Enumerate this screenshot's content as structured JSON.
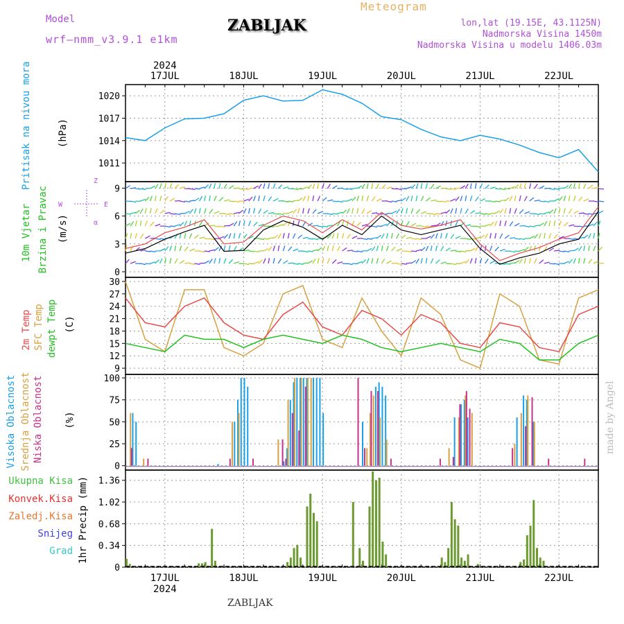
{
  "header": {
    "model_label": "Model",
    "model_name": "wrf—nmm_v3.9.1 e1km",
    "station": "ZABLJAK",
    "title": "Meteogram",
    "info_lines": [
      "lon,lat (19.15E, 43.1125N)",
      "Nadmorska Visina 1450m",
      "Nadmorska Visina u modelu 1406.03m"
    ],
    "credit": "made by Angel",
    "bottom_station": "ZABLJAK"
  },
  "colors": {
    "purple": "#b04fd8",
    "orange": "#e8b060",
    "pressure": "#1aa0e8",
    "temp2m": "#e84a4a",
    "sfc": "#d8a040",
    "dew": "#20c020",
    "high": "#1aa0e8",
    "mid": "#d8a040",
    "low": "#c8308a",
    "total_precip": "#40c040",
    "convective": "#e83030",
    "frozen": "#e87830",
    "snow": "#4040e0",
    "graupel": "#30c8c8",
    "precip_bar": "#6a9a30"
  },
  "axis": {
    "year_label": "2024",
    "days": [
      "17JUL",
      "18JUL",
      "19JUL",
      "20JUL",
      "21JUL",
      "22JUL"
    ]
  },
  "compass": {
    "n": "Z",
    "w": "W",
    "e": "E",
    "s": "α"
  },
  "chart_data": [
    {
      "type": "line",
      "title": "",
      "ylabel_lines": [
        "Pritisak na nivou mora",
        "(hPa)"
      ],
      "yticks": [
        1011,
        1014,
        1017,
        1020
      ],
      "ylim": [
        1008.5,
        1021.5
      ],
      "x_hours": [
        0,
        6,
        12,
        18,
        24,
        30,
        36,
        42,
        48,
        54,
        60,
        66,
        72,
        78,
        84,
        90,
        96,
        102,
        108,
        114,
        120,
        126,
        132,
        138,
        144
      ],
      "series": [
        {
          "values": [
            1014.4,
            1014.0,
            1015.7,
            1016.9,
            1017.0,
            1017.6,
            1019.4,
            1020.0,
            1019.3,
            1019.4,
            1020.8,
            1020.2,
            1019.0,
            1017.2,
            1016.8,
            1015.5,
            1014.5,
            1014.0,
            1014.7,
            1014.2,
            1013.4,
            1012.4,
            1011.7,
            1012.8,
            1009.8
          ]
        }
      ]
    },
    {
      "type": "line",
      "title": "",
      "ylabel_lines": [
        "10m Vjetar",
        "Brzina i Pravac",
        "(m/s)"
      ],
      "yticks": [
        0,
        3,
        6,
        9
      ],
      "ylim": [
        -0.6,
        9.7
      ],
      "x_hours": [
        0,
        6,
        12,
        18,
        24,
        30,
        36,
        42,
        48,
        54,
        60,
        66,
        72,
        78,
        84,
        90,
        96,
        102,
        108,
        114,
        120,
        126,
        132,
        138,
        144
      ],
      "series": [
        {
          "name": "speed",
          "values": [
            2.0,
            2.5,
            3.5,
            4.3,
            5.0,
            2.2,
            2.3,
            4.5,
            5.5,
            4.8,
            3.5,
            5.0,
            4.0,
            6.0,
            4.5,
            4.0,
            4.5,
            5.0,
            2.5,
            0.8,
            1.5,
            2.0,
            3.0,
            3.5,
            6.5
          ]
        },
        {
          "name": "gust",
          "values": [
            2.5,
            3.0,
            4.2,
            4.8,
            5.6,
            3.0,
            3.2,
            5.0,
            6.0,
            5.5,
            4.2,
            5.6,
            4.5,
            6.4,
            5.0,
            4.6,
            5.0,
            5.6,
            3.0,
            1.2,
            2.0,
            2.6,
            3.5,
            4.2,
            7.0
          ]
        }
      ]
    },
    {
      "type": "line",
      "title": "",
      "ylabel_lines": [
        "2m Temp",
        "SFC Temp",
        "dewpt Temp",
        "(C)"
      ],
      "yticks": [
        9,
        12,
        15,
        18,
        21,
        24,
        27,
        30
      ],
      "ylim": [
        7.5,
        31
      ],
      "x_hours": [
        0,
        6,
        12,
        18,
        24,
        30,
        36,
        42,
        48,
        54,
        60,
        66,
        72,
        78,
        84,
        90,
        96,
        102,
        108,
        114,
        120,
        126,
        132,
        138,
        144
      ],
      "series": [
        {
          "name": "2m Temp",
          "values": [
            26,
            20,
            19,
            24,
            26,
            20,
            17,
            16,
            22,
            25,
            19,
            17,
            23,
            21,
            17,
            22,
            20,
            15,
            14,
            20,
            19,
            14,
            13,
            22,
            24
          ]
        },
        {
          "name": "SFC Temp",
          "values": [
            30,
            16,
            13,
            28,
            28,
            14,
            12,
            15,
            27,
            29,
            16,
            14,
            26,
            18,
            12,
            26,
            22,
            11,
            9,
            27,
            24,
            11,
            10,
            26,
            28
          ]
        },
        {
          "name": "dewpt Temp",
          "values": [
            15,
            14,
            13,
            17,
            16,
            16,
            14,
            16,
            17,
            16,
            15,
            17,
            16,
            14,
            13,
            14,
            15,
            14,
            13,
            16,
            15,
            11,
            11,
            15,
            17
          ]
        }
      ]
    },
    {
      "type": "bar",
      "title": "",
      "ylabel_lines": [
        "Visoka Oblacnost",
        "Srednja Oblacnost",
        "Niska Oblacnost",
        "(%)"
      ],
      "yticks": [
        0,
        25,
        50,
        75,
        100
      ],
      "ylim": [
        -5,
        104
      ],
      "series": [
        {
          "name": "Visoka Oblacnost",
          "bars": [
            [
              2,
              60
            ],
            [
              3,
              50
            ],
            [
              28,
              2
            ],
            [
              33,
              50
            ],
            [
              34,
              75
            ],
            [
              35,
              100
            ],
            [
              36,
              100
            ],
            [
              37,
              90
            ],
            [
              48,
              5
            ],
            [
              49,
              20
            ],
            [
              50,
              75
            ],
            [
              51,
              95
            ],
            [
              52,
              100
            ],
            [
              53,
              100
            ],
            [
              54,
              100
            ],
            [
              55,
              100
            ],
            [
              57,
              100
            ],
            [
              58,
              100
            ],
            [
              59,
              100
            ],
            [
              60,
              60
            ],
            [
              72,
              50
            ],
            [
              76,
              90
            ],
            [
              77,
              95
            ],
            [
              78,
              90
            ],
            [
              79,
              80
            ],
            [
              100,
              55
            ],
            [
              102,
              70
            ],
            [
              103,
              75
            ],
            [
              104,
              55
            ],
            [
              119,
              55
            ],
            [
              121,
              80
            ],
            [
              122,
              75
            ],
            [
              124,
              50
            ]
          ]
        },
        {
          "name": "Srednja Oblacnost",
          "bars": [
            [
              1,
              60
            ],
            [
              5,
              8
            ],
            [
              32,
              50
            ],
            [
              34,
              60
            ],
            [
              46,
              30
            ],
            [
              49,
              75
            ],
            [
              51,
              100
            ],
            [
              53,
              100
            ],
            [
              55,
              100
            ],
            [
              56,
              100
            ],
            [
              73,
              20
            ],
            [
              74,
              60
            ],
            [
              75,
              80
            ],
            [
              77,
              55
            ],
            [
              79,
              30
            ],
            [
              98,
              20
            ],
            [
              101,
              55
            ],
            [
              103,
              80
            ],
            [
              105,
              60
            ],
            [
              118,
              25
            ],
            [
              120,
              60
            ],
            [
              122,
              80
            ],
            [
              124,
              50
            ]
          ]
        },
        {
          "name": "Niska Oblacnost",
          "bars": [
            [
              1,
              20
            ],
            [
              6,
              8
            ],
            [
              31,
              8
            ],
            [
              38,
              8
            ],
            [
              47,
              30
            ],
            [
              48,
              8
            ],
            [
              50,
              60
            ],
            [
              52,
              40
            ],
            [
              54,
              90
            ],
            [
              70,
              100
            ],
            [
              72,
              20
            ],
            [
              74,
              85
            ],
            [
              76,
              85
            ],
            [
              80,
              8
            ],
            [
              95,
              8
            ],
            [
              99,
              10
            ],
            [
              101,
              70
            ],
            [
              103,
              85
            ],
            [
              104,
              65
            ],
            [
              117,
              20
            ],
            [
              121,
              45
            ],
            [
              123,
              78
            ],
            [
              128,
              8
            ],
            [
              139,
              8
            ]
          ]
        }
      ]
    },
    {
      "type": "bar",
      "title": "",
      "ylabel_lines": [
        "1hr Precip (mm)"
      ],
      "legend": [
        "Ukupna Kisa",
        "Konvek.Kisa",
        "Zaledj.Kisa",
        "Snijeg",
        "Grad"
      ],
      "yticks": [
        0,
        0.34,
        0.68,
        1.02,
        1.36
      ],
      "ylim": [
        0,
        1.52
      ],
      "series": [
        {
          "name": "Ukupna Kisa",
          "bars": [
            [
              0,
              0.13
            ],
            [
              1,
              0.05
            ],
            [
              22,
              0.06
            ],
            [
              23,
              0.06
            ],
            [
              24,
              0.08
            ],
            [
              26,
              0.6
            ],
            [
              27,
              0.1
            ],
            [
              49,
              0.08
            ],
            [
              50,
              0.15
            ],
            [
              51,
              0.3
            ],
            [
              52,
              0.35
            ],
            [
              53,
              0.15
            ],
            [
              55,
              0.95
            ],
            [
              56,
              1.15
            ],
            [
              57,
              0.85
            ],
            [
              58,
              0.72
            ],
            [
              69,
              1.02
            ],
            [
              71,
              0.3
            ],
            [
              72,
              0.1
            ],
            [
              74,
              0.95
            ],
            [
              75,
              1.5
            ],
            [
              76,
              1.36
            ],
            [
              77,
              1.4
            ],
            [
              78,
              0.4
            ],
            [
              79,
              0.2
            ],
            [
              96,
              0.15
            ],
            [
              97,
              0.08
            ],
            [
              98,
              0.3
            ],
            [
              99,
              1.02
            ],
            [
              100,
              0.75
            ],
            [
              101,
              0.65
            ],
            [
              102,
              0.15
            ],
            [
              103,
              0.1
            ],
            [
              104,
              0.2
            ],
            [
              107,
              0.05
            ],
            [
              120,
              0.08
            ],
            [
              121,
              0.12
            ],
            [
              122,
              0.5
            ],
            [
              123,
              0.65
            ],
            [
              124,
              1.05
            ],
            [
              125,
              0.3
            ],
            [
              126,
              0.15
            ],
            [
              127,
              0.1
            ]
          ]
        }
      ]
    }
  ]
}
